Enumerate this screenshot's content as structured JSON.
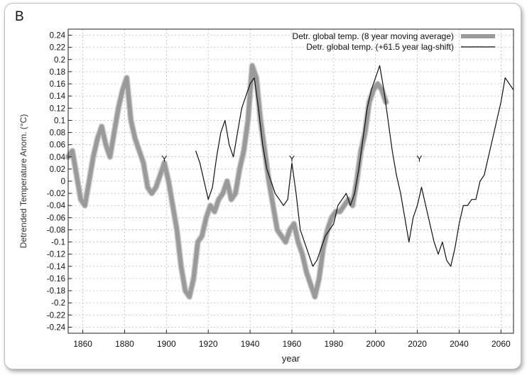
{
  "panel_label": "B",
  "colors": {
    "moving_average": "#9a9a9a",
    "moving_average_light": "#cfcfcf",
    "lag_shift": "#111111",
    "grid": "#b0b0b0"
  },
  "chart_data": {
    "type": "line",
    "title": "",
    "xlabel": "year",
    "ylabel": "Detrended Temperature Anom. (°C)",
    "xlim": [
      1853,
      2066
    ],
    "ylim": [
      -0.25,
      0.25
    ],
    "xticks": [
      1860,
      1880,
      1900,
      1920,
      1940,
      1960,
      1980,
      2000,
      2020,
      2040,
      2060
    ],
    "yticks": [
      0.24,
      0.22,
      0.2,
      0.18,
      0.16,
      0.14,
      0.12,
      0.1,
      0.08,
      0.06,
      0.04,
      0.02,
      0,
      -0.02,
      -0.04,
      -0.06,
      -0.08,
      -0.1,
      -0.12,
      -0.14,
      -0.16,
      -0.18,
      -0.2,
      -0.22,
      -0.24
    ],
    "ytick_labels": [
      "0.24",
      "0.22",
      "0.2",
      "0.18",
      "0.16",
      "0.14",
      "0.12",
      "0.1",
      "0.08",
      "0.06",
      "0.04",
      "0.02",
      "0",
      "-0.02",
      "-0.04",
      "-0.06",
      "-0.08",
      "-0.1",
      "-0.12",
      "-0.14",
      "-0.16",
      "-0.18",
      "-0.2",
      "-0.22",
      "-0.24"
    ],
    "grid": true,
    "legend_position": "top-right",
    "annotations": [
      {
        "text": "Y",
        "x": 1899,
        "y": 0.025
      },
      {
        "text": "Y",
        "x": 1960,
        "y": 0.025
      },
      {
        "text": "Y",
        "x": 2021,
        "y": 0.025
      }
    ],
    "series": [
      {
        "name": "Detr. global temp. (8 year moving average)",
        "style": "thick-gray",
        "x": [
          1853,
          1855,
          1857,
          1859,
          1861,
          1863,
          1865,
          1867,
          1869,
          1871,
          1873,
          1875,
          1877,
          1879,
          1881,
          1883,
          1885,
          1887,
          1889,
          1891,
          1893,
          1895,
          1897,
          1899,
          1901,
          1903,
          1905,
          1907,
          1909,
          1911,
          1913,
          1915,
          1917,
          1919,
          1921,
          1923,
          1925,
          1927,
          1929,
          1931,
          1933,
          1935,
          1937,
          1939,
          1941,
          1943,
          1945,
          1947,
          1949,
          1951,
          1953,
          1955,
          1957,
          1959,
          1961,
          1963,
          1965,
          1967,
          1969,
          1971,
          1973,
          1975,
          1977,
          1979,
          1981,
          1983,
          1985,
          1987,
          1989,
          1991,
          1993,
          1995,
          1997,
          1999,
          2001,
          2003,
          2005
        ],
        "values": [
          0.04,
          0.05,
          0.01,
          -0.03,
          -0.04,
          0.0,
          0.04,
          0.07,
          0.09,
          0.06,
          0.04,
          0.08,
          0.12,
          0.15,
          0.17,
          0.1,
          0.07,
          0.05,
          0.03,
          -0.01,
          -0.02,
          -0.01,
          0.01,
          0.03,
          0.0,
          -0.04,
          -0.08,
          -0.14,
          -0.18,
          -0.19,
          -0.16,
          -0.1,
          -0.09,
          -0.06,
          -0.04,
          -0.05,
          -0.03,
          -0.02,
          0.0,
          -0.03,
          -0.02,
          0.02,
          0.05,
          0.1,
          0.19,
          0.17,
          0.1,
          0.05,
          0.0,
          -0.04,
          -0.08,
          -0.09,
          -0.1,
          -0.08,
          -0.07,
          -0.1,
          -0.12,
          -0.15,
          -0.17,
          -0.19,
          -0.16,
          -0.11,
          -0.08,
          -0.06,
          -0.05,
          -0.05,
          -0.04,
          -0.03,
          -0.04,
          0.0,
          0.05,
          0.08,
          0.13,
          0.15,
          0.16,
          0.15,
          0.13
        ]
      },
      {
        "name": "Detr. global temp. (+61.5 year lag-shift)",
        "style": "thin-black",
        "x": [
          1914,
          1916,
          1918,
          1920,
          1922,
          1924,
          1926,
          1928,
          1930,
          1932,
          1934,
          1936,
          1938,
          1940,
          1942,
          1944,
          1946,
          1948,
          1950,
          1952,
          1954,
          1956,
          1958,
          1960,
          1962,
          1964,
          1966,
          1968,
          1970,
          1972,
          1974,
          1976,
          1978,
          1980,
          1982,
          1984,
          1986,
          1988,
          1990,
          1992,
          1994,
          1996,
          1998,
          2000,
          2002,
          2004,
          2006,
          2008,
          2010,
          2012,
          2014,
          2016,
          2018,
          2020,
          2022,
          2024,
          2026,
          2028,
          2030,
          2032,
          2034,
          2036,
          2038,
          2040,
          2042,
          2044,
          2046,
          2048,
          2050,
          2052,
          2054,
          2056,
          2058,
          2060,
          2062,
          2064,
          2066
        ],
        "values": [
          0.05,
          0.03,
          0.0,
          -0.03,
          -0.01,
          0.04,
          0.08,
          0.1,
          0.06,
          0.04,
          0.08,
          0.12,
          0.14,
          0.16,
          0.17,
          0.12,
          0.06,
          0.02,
          0.0,
          -0.02,
          -0.03,
          -0.04,
          -0.03,
          0.03,
          -0.02,
          -0.08,
          -0.1,
          -0.12,
          -0.14,
          -0.13,
          -0.11,
          -0.09,
          -0.08,
          -0.07,
          -0.04,
          -0.03,
          -0.02,
          -0.04,
          -0.02,
          0.02,
          0.07,
          0.12,
          0.15,
          0.17,
          0.19,
          0.15,
          0.1,
          0.05,
          0.01,
          -0.02,
          -0.06,
          -0.1,
          -0.06,
          -0.04,
          -0.01,
          -0.04,
          -0.07,
          -0.1,
          -0.12,
          -0.1,
          -0.13,
          -0.14,
          -0.11,
          -0.07,
          -0.04,
          -0.04,
          -0.03,
          -0.03,
          0.0,
          0.01,
          0.04,
          0.07,
          0.1,
          0.13,
          0.17,
          0.16,
          0.15
        ]
      }
    ]
  }
}
